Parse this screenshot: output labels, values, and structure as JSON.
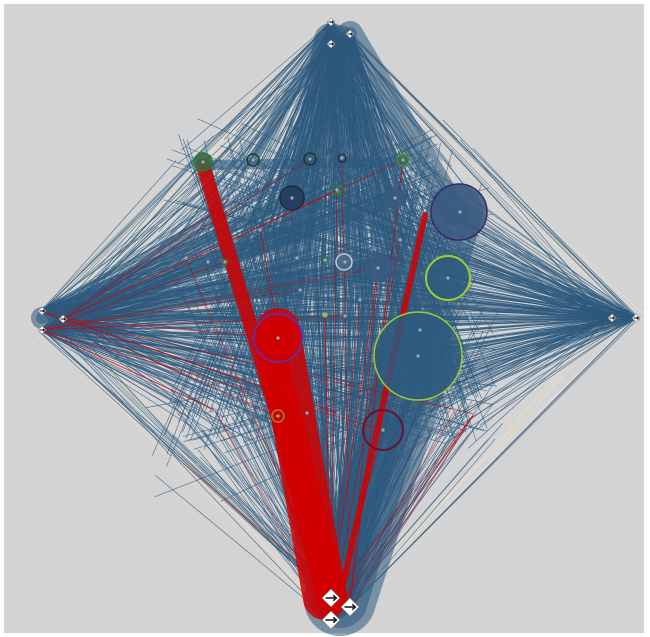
{
  "view": {
    "kind": "network-graph-3d-projection",
    "background_color": "#d3d3d3",
    "frame_color": "#ffffff",
    "edge_colors": {
      "primary": "#2e5a7e",
      "highlight": "#d10000",
      "faint": "#e8e0d0"
    },
    "node_icon": "arrow-marker-icon",
    "ring_colors": [
      "#9acd32",
      "#6a1030",
      "#3a2a6a",
      "#2a7a2a"
    ]
  }
}
